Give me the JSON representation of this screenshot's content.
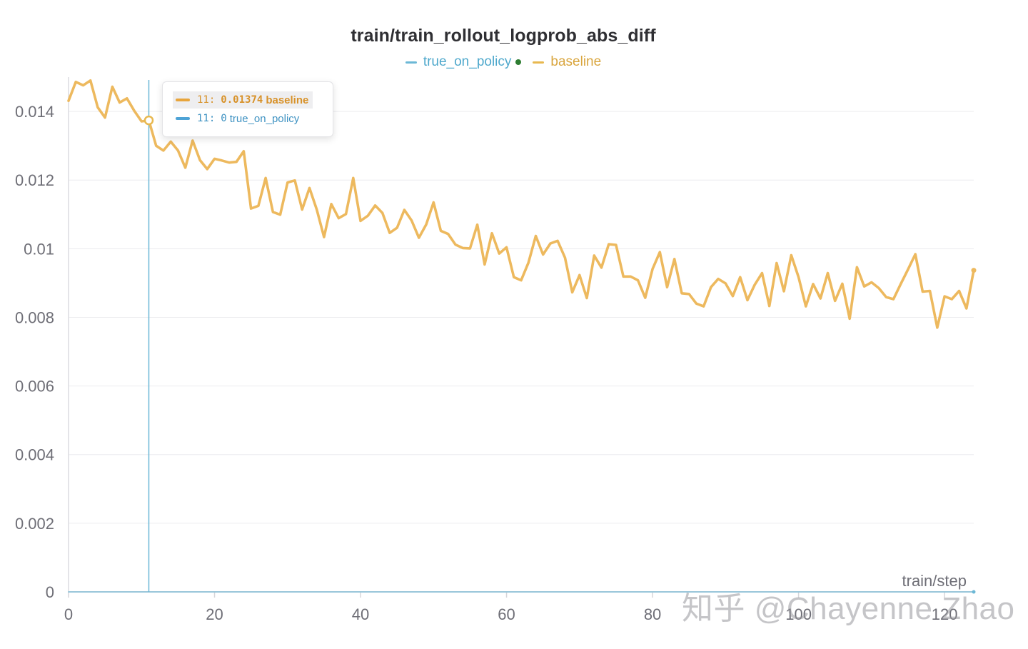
{
  "title": "train/train_rollout_logprob_abs_diff",
  "legend": [
    {
      "name": "true_on_policy",
      "color": "#6cb8d6",
      "dot_color": "#2e7d32"
    },
    {
      "name": "baseline",
      "color": "#e8b84f"
    }
  ],
  "tooltip": {
    "rows": [
      {
        "step": "11:",
        "value": "0.01374",
        "name": "baseline",
        "color": "#e8a53c",
        "text_color": "#d8922a"
      },
      {
        "step": "11:",
        "value": "0",
        "name": "true_on_policy",
        "color": "#4ea3d6",
        "text_color": "#3e92c2"
      }
    ]
  },
  "watermark": "知乎 @Chayenne Zhao",
  "chart_data": {
    "type": "line",
    "title": "train/train_rollout_logprob_abs_diff",
    "xlabel": "train/step",
    "ylabel": "",
    "xlim": [
      0,
      124
    ],
    "ylim": [
      0,
      0.015
    ],
    "xticks": [
      0,
      20,
      40,
      60,
      80,
      100,
      120
    ],
    "xtick_labels": [
      "0",
      "20",
      "40",
      "60",
      "80",
      "100",
      "120"
    ],
    "yticks": [
      0,
      0.002,
      0.004,
      0.006,
      0.008,
      0.01,
      0.012,
      0.014
    ],
    "ytick_labels": [
      "0",
      "0.002",
      "0.004",
      "0.006",
      "0.008",
      "0.01",
      "0.012",
      "0.014"
    ],
    "grid": true,
    "legend_position": "top-center",
    "hover_step": 11,
    "series": [
      {
        "name": "baseline",
        "color": "#edb95e",
        "x": [
          0,
          1,
          2,
          3,
          4,
          5,
          6,
          7,
          8,
          9,
          10,
          11,
          12,
          13,
          14,
          15,
          16,
          17,
          18,
          19,
          20,
          21,
          22,
          23,
          24,
          25,
          26,
          27,
          28,
          29,
          30,
          31,
          32,
          33,
          34,
          35,
          36,
          37,
          38,
          39,
          40,
          41,
          42,
          43,
          44,
          45,
          46,
          47,
          48,
          49,
          50,
          51,
          52,
          53,
          54,
          55,
          56,
          57,
          58,
          59,
          60,
          61,
          62,
          63,
          64,
          65,
          66,
          67,
          68,
          69,
          70,
          71,
          72,
          73,
          74,
          75,
          76,
          77,
          78,
          79,
          80,
          81,
          82,
          83,
          84,
          85,
          86,
          87,
          88,
          89,
          90,
          91,
          92,
          93,
          94,
          95,
          96,
          97,
          98,
          99,
          100,
          101,
          102,
          103,
          104,
          105,
          106,
          107,
          108,
          109,
          110,
          111,
          112,
          113,
          114,
          115,
          116,
          117,
          118,
          119,
          120,
          121,
          122,
          123,
          124
        ],
        "y": [
          0.01431,
          0.01486,
          0.01476,
          0.0149,
          0.01412,
          0.01382,
          0.01472,
          0.01426,
          0.01438,
          0.01402,
          0.01371,
          0.01374,
          0.013,
          0.01286,
          0.01312,
          0.01286,
          0.01236,
          0.01315,
          0.01258,
          0.01232,
          0.01262,
          0.01257,
          0.01251,
          0.01253,
          0.01284,
          0.01117,
          0.01125,
          0.01206,
          0.01107,
          0.01099,
          0.01193,
          0.01199,
          0.01114,
          0.01177,
          0.01114,
          0.01034,
          0.0113,
          0.01089,
          0.01101,
          0.01206,
          0.01081,
          0.01096,
          0.01126,
          0.01104,
          0.01046,
          0.01061,
          0.01113,
          0.01082,
          0.01032,
          0.01071,
          0.01135,
          0.01052,
          0.01043,
          0.01012,
          0.01002,
          0.01001,
          0.0107,
          0.00954,
          0.01045,
          0.00986,
          0.01004,
          0.00917,
          0.00908,
          0.00959,
          0.01037,
          0.00983,
          0.01015,
          0.01023,
          0.00974,
          0.00873,
          0.00923,
          0.00856,
          0.0098,
          0.00945,
          0.01013,
          0.01011,
          0.00919,
          0.00919,
          0.00908,
          0.00857,
          0.00941,
          0.0099,
          0.00888,
          0.0097,
          0.0087,
          0.00868,
          0.0084,
          0.00832,
          0.00888,
          0.00912,
          0.00899,
          0.00862,
          0.00917,
          0.0085,
          0.00895,
          0.00929,
          0.00833,
          0.00958,
          0.00876,
          0.00981,
          0.00917,
          0.00832,
          0.00897,
          0.00855,
          0.00929,
          0.00848,
          0.00898,
          0.00796,
          0.00946,
          0.0089,
          0.00902,
          0.00885,
          0.00859,
          0.00853,
          0.00897,
          0.0094,
          0.00984,
          0.00875,
          0.00877,
          0.0077,
          0.00861,
          0.00853,
          0.00877,
          0.00826,
          0.00937
        ]
      },
      {
        "name": "true_on_policy",
        "color": "#6cb8d6",
        "x": [
          0,
          124
        ],
        "y": [
          0,
          0
        ]
      }
    ]
  }
}
